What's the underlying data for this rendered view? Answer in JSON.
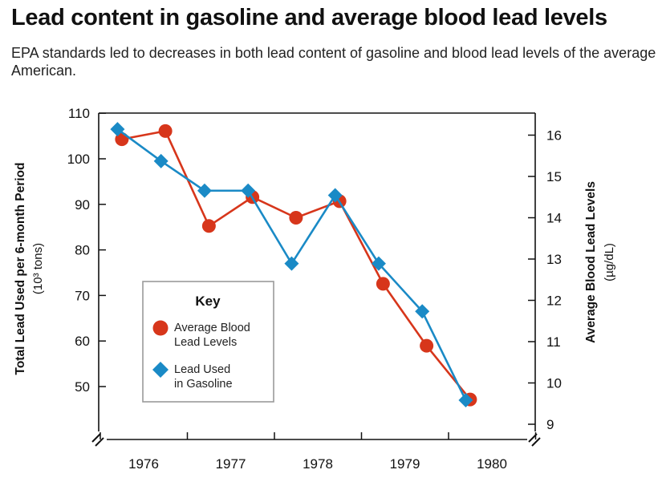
{
  "header": {
    "title": "Lead content in gasoline and average blood lead levels",
    "subtitle": "EPA standards led to decreases in both lead content of gasoline and blood lead levels of the average American."
  },
  "chart_data": {
    "type": "line",
    "x_ticks": [
      "1976",
      "1977",
      "1978",
      "1979",
      "1980"
    ],
    "y_left": {
      "label": "Total Lead Used per 6-month Period",
      "unit": "(10³ tons)",
      "ticks": [
        50,
        60,
        70,
        80,
        90,
        100,
        110
      ],
      "range": [
        45,
        110
      ]
    },
    "y_right": {
      "label": "Average Blood Lead Levels",
      "unit": "(µg/dL)",
      "ticks": [
        9,
        10,
        11,
        12,
        13,
        14,
        15,
        16
      ],
      "range": [
        9,
        16.8
      ]
    },
    "series": [
      {
        "name": "Average Blood Lead Levels",
        "axis": "right",
        "color": "#d7361b",
        "marker": "circle",
        "x": [
          1975.75,
          1976.25,
          1976.75,
          1977.25,
          1977.75,
          1978.25,
          1978.75,
          1979.25,
          1979.75
        ],
        "values": [
          15.9,
          16.1,
          13.8,
          14.5,
          14.0,
          14.4,
          12.4,
          10.9,
          9.6
        ]
      },
      {
        "name": "Lead Used in Gasoline",
        "axis": "left",
        "color": "#1a8ac6",
        "marker": "diamond",
        "x": [
          1975.7,
          1976.2,
          1976.7,
          1977.2,
          1977.7,
          1978.2,
          1978.7,
          1979.2,
          1979.7
        ],
        "values": [
          106.5,
          99.5,
          93,
          93,
          77,
          92,
          77,
          66.5,
          47
        ]
      }
    ],
    "legend": {
      "title": "Key",
      "position": "bottom-left",
      "items": [
        {
          "line1": "Average Blood",
          "line2": "Lead Levels",
          "color": "#d7361b",
          "marker": "circle"
        },
        {
          "line1": "Lead Used",
          "line2": "in Gasoline",
          "color": "#1a8ac6",
          "marker": "diamond"
        }
      ]
    },
    "grid": false,
    "axis_breaks": true
  }
}
